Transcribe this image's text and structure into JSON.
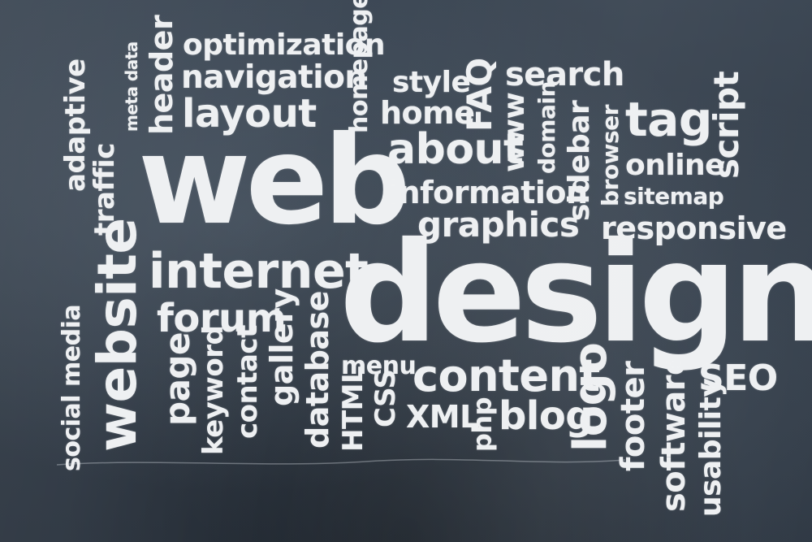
{
  "words": {
    "web": "web",
    "design": "design",
    "optimization": "optimization",
    "navigation": "navigation",
    "layout": "layout",
    "header": "header",
    "meta_data": "meta data",
    "adaptive": "adaptive",
    "traffic": "traffic",
    "homepage": "homepage",
    "style": "style",
    "faq": "FAQ",
    "search": "search",
    "home": "home",
    "www": "www",
    "domain": "domain",
    "about": "about",
    "sidebar": "sidebar",
    "browser": "browser",
    "tag": "tag",
    "script": "script",
    "online": "online",
    "information": "information",
    "sitemap": "sitemap",
    "graphics": "graphics",
    "responsive": "responsive",
    "internet": "internet",
    "website": "website",
    "forum": "forum",
    "social_media": "social media",
    "page": "page",
    "keyword": "keyword",
    "contact": "contact",
    "gallery": "gallery",
    "database": "database",
    "menu": "menu",
    "html": "HTML",
    "css": "CSS",
    "xml": "XML",
    "content": "content",
    "php": "php",
    "blog": "blog",
    "logo": "logo",
    "footer": "footer",
    "software": "software",
    "usability": "usability",
    "seo": "SEO"
  }
}
